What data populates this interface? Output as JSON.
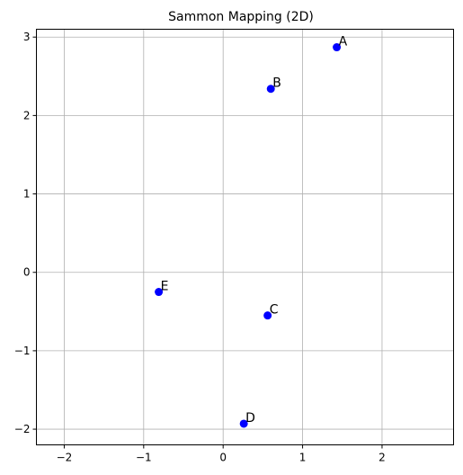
{
  "chart_data": {
    "type": "scatter",
    "title": "Sammon Mapping (2D)",
    "xlabel": "",
    "ylabel": "",
    "xlim": [
      -2.35,
      2.9
    ],
    "ylim": [
      -2.2,
      3.1
    ],
    "xticks": [
      -2,
      -1,
      0,
      1,
      2
    ],
    "yticks": [
      -2,
      -1,
      0,
      1,
      2,
      3
    ],
    "grid": true,
    "marker_color": "#0000ff",
    "points": [
      {
        "label": "A",
        "x": 1.43,
        "y": 2.87
      },
      {
        "label": "B",
        "x": 0.6,
        "y": 2.34
      },
      {
        "label": "C",
        "x": 0.56,
        "y": -0.55
      },
      {
        "label": "D",
        "x": 0.26,
        "y": -1.93
      },
      {
        "label": "E",
        "x": -0.81,
        "y": -0.25
      }
    ]
  }
}
